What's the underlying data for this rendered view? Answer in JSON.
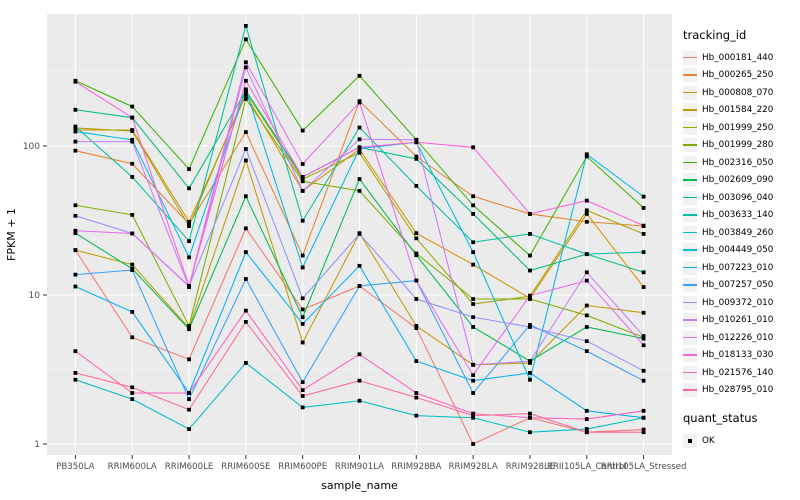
{
  "figure": {
    "background": "#FFFFFF",
    "panel_bg": "#EBEBEB",
    "grid_major_color": "#FFFFFF",
    "grid_minor_color": "#F5F5F5",
    "tick_label_color": "#4D4D4D",
    "axis_title_color": "#000000",
    "tick_mark_color": "#333333",
    "point_color": "#000000",
    "legend_key_bg": "#F2F2F2"
  },
  "chart_data": {
    "type": "line",
    "title": "",
    "xlabel": "sample_name",
    "ylabel": "FPKM + 1",
    "x_categories": [
      "PB350LA",
      "RRIM600LA",
      "RRIM600LE",
      "RRIM600SE",
      "RRIM600PE",
      "RRIM901LA",
      "RRIM928BA",
      "RRIM928LA",
      "RRIM928LE",
      "RRII105LA_Control",
      "RRII105LA_Stressed"
    ],
    "y_scale": "log10",
    "y_ticks": [
      1,
      10,
      100
    ],
    "y_tick_labels": [
      "1",
      "10",
      "100"
    ],
    "y_minor_ticks": [
      3.162,
      31.62,
      316.2
    ],
    "ylim": [
      0.85,
      780
    ],
    "grid": true,
    "legend_position": "right",
    "legend_title": "tracking_id",
    "point_marker": "black-square",
    "series": [
      {
        "name": "Hb_000181_440",
        "color": "#F8766D",
        "values": [
          20,
          5.2,
          3.7,
          28,
          8.0,
          11.5,
          6.0,
          1.0,
          1.5,
          1.2,
          1.25
        ]
      },
      {
        "name": "Hb_000265_250",
        "color": "#EA8331",
        "values": [
          93,
          76,
          30,
          124,
          18.4,
          200,
          85,
          46,
          35,
          31,
          29
        ]
      },
      {
        "name": "Hb_000808_070",
        "color": "#D89000",
        "values": [
          128,
          128,
          31,
          220,
          50,
          95,
          26,
          16,
          9.5,
          35,
          11.3
        ]
      },
      {
        "name": "Hb_001584_220",
        "color": "#C09B00",
        "values": [
          20,
          16,
          6.0,
          80,
          4.8,
          26,
          6.2,
          3.4,
          3.5,
          8.5,
          7.6
        ]
      },
      {
        "name": "Hb_001999_250",
        "color": "#A3A500",
        "values": [
          132,
          126,
          29,
          230,
          60,
          90,
          24,
          8.7,
          9.8,
          37,
          25.7
        ]
      },
      {
        "name": "Hb_001999_280",
        "color": "#7CAE00",
        "values": [
          40,
          34.5,
          6.2,
          207,
          58,
          50,
          19,
          9.4,
          9.4,
          7.3,
          5.2
        ]
      },
      {
        "name": "Hb_002316_050",
        "color": "#39B600",
        "values": [
          274,
          184,
          70,
          520,
          127,
          296,
          110,
          40,
          18.4,
          85,
          38.4
        ]
      },
      {
        "name": "Hb_002609_090",
        "color": "#00BB4E",
        "values": [
          26,
          15,
          5.9,
          46,
          7.1,
          60,
          18.5,
          6.1,
          3.6,
          6.1,
          5.1
        ]
      },
      {
        "name": "Hb_003096_040",
        "color": "#00BF7D",
        "values": [
          175,
          155,
          52,
          235,
          62,
          98,
          82,
          35,
          14.6,
          18.8,
          14.2
        ]
      },
      {
        "name": "Hb_003633_140",
        "color": "#00C1A3",
        "values": [
          135,
          62,
          23,
          640,
          31.5,
          133,
          54,
          22.6,
          25.7,
          18.8,
          19.4
        ]
      },
      {
        "name": "Hb_003849_260",
        "color": "#00BFC4",
        "values": [
          2.7,
          2.0,
          1.26,
          3.5,
          1.76,
          1.95,
          1.55,
          1.5,
          1.2,
          1.26,
          1.5
        ]
      },
      {
        "name": "Hb_004449_050",
        "color": "#00BAE0",
        "values": [
          125,
          110,
          17.9,
          240,
          15.3,
          96,
          106,
          19.4,
          2.7,
          88,
          45.7
        ]
      },
      {
        "name": "Hb_007223_010",
        "color": "#00B0F6",
        "values": [
          11.4,
          7.7,
          2.2,
          19.4,
          6.4,
          15.7,
          3.6,
          2.66,
          3.0,
          1.67,
          1.5
        ]
      },
      {
        "name": "Hb_007257_050",
        "color": "#35A2FF",
        "values": [
          13.7,
          14.7,
          2.0,
          12.8,
          2.6,
          11.5,
          12.5,
          2.2,
          6.3,
          4.2,
          2.66
        ]
      },
      {
        "name": "Hb_009372_010",
        "color": "#9590FF",
        "values": [
          34,
          25.9,
          11.5,
          95.5,
          9.5,
          25.7,
          9.4,
          7.1,
          6.1,
          4.9,
          3.1
        ]
      },
      {
        "name": "Hb_010261_010",
        "color": "#C77CFF",
        "values": [
          107,
          107,
          11.3,
          337,
          50,
          111,
          110,
          3.4,
          3.6,
          14.2,
          5.3
        ]
      },
      {
        "name": "Hb_012226_010",
        "color": "#E76BF3",
        "values": [
          27,
          25.9,
          11.4,
          365,
          75.7,
          196,
          12.5,
          2.9,
          9.9,
          12.5,
          4.6
        ]
      },
      {
        "name": "Hb_018133_030",
        "color": "#FA62DB",
        "values": [
          270,
          155,
          11.5,
          274,
          62,
          98,
          106,
          98,
          35,
          43,
          29.2
        ]
      },
      {
        "name": "Hb_021576_140",
        "color": "#FF62BC",
        "values": [
          4.2,
          2.2,
          2.2,
          7.85,
          2.3,
          4.0,
          2.2,
          1.6,
          1.5,
          1.47,
          1.67
        ]
      },
      {
        "name": "Hb_028795_010",
        "color": "#FF6A98",
        "values": [
          3.0,
          2.4,
          1.7,
          6.6,
          2.1,
          2.66,
          2.05,
          1.55,
          1.6,
          1.2,
          1.2
        ]
      }
    ],
    "quant_legend": {
      "title": "quant_status",
      "items": [
        {
          "label": "OK",
          "marker": "black-square"
        }
      ]
    }
  }
}
